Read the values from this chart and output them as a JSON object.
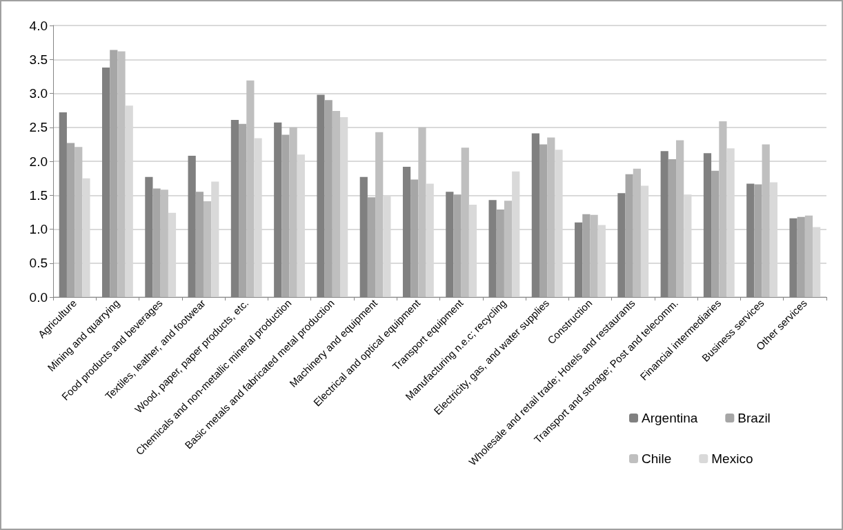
{
  "chart_data": {
    "type": "bar",
    "categories": [
      "Agriculture",
      "Mining and quarrying",
      "Food products and beverages",
      "Textiles, leather, and footwear",
      "Wood, paper, paper products, etc.",
      "Chemicals and non-metallic mineral production",
      "Basic metals and fabricated metal production",
      "Machinery and equipment",
      "Electrical and optical equipment",
      "Transport equipment",
      "Manufacturing n.e.c; recycling",
      "Electricity, gas, and water supplies",
      "Construction",
      "Wholesale and retail trade; Hotels and restaurants",
      "Transport and storage; Post and telecomm.",
      "Financial intermediaries",
      "Business services",
      "Other services"
    ],
    "series": [
      {
        "name": "Argentina",
        "color": "#808080",
        "values": [
          2.72,
          3.38,
          1.77,
          2.08,
          2.61,
          2.57,
          2.98,
          1.77,
          1.92,
          1.55,
          1.43,
          2.41,
          1.1,
          1.53,
          2.15,
          2.12,
          1.67,
          1.16
        ]
      },
      {
        "name": "Brazil",
        "color": "#a6a6a6",
        "values": [
          2.27,
          3.64,
          1.6,
          1.55,
          2.55,
          2.39,
          2.9,
          1.47,
          1.73,
          1.51,
          1.29,
          2.25,
          1.22,
          1.81,
          2.03,
          1.86,
          1.66,
          1.18
        ]
      },
      {
        "name": "Chile",
        "color": "#bfbfbf",
        "values": [
          2.21,
          3.62,
          1.58,
          1.41,
          3.19,
          2.5,
          2.74,
          2.43,
          2.5,
          2.2,
          1.42,
          2.35,
          1.21,
          1.89,
          2.31,
          2.59,
          2.25,
          1.2
        ]
      },
      {
        "name": "Mexico",
        "color": "#d9d9d9",
        "values": [
          1.75,
          2.82,
          1.24,
          1.7,
          2.34,
          2.1,
          2.65,
          1.49,
          1.67,
          1.36,
          1.85,
          2.17,
          1.06,
          1.64,
          1.51,
          2.19,
          1.69,
          1.03
        ]
      }
    ],
    "ylim": [
      0,
      4.0
    ],
    "yticks": [
      {
        "value": 0,
        "label": "0.0"
      },
      {
        "value": 0.5,
        "label": "0.5"
      },
      {
        "value": 1,
        "label": "1.0"
      },
      {
        "value": 1.5,
        "label": "1.5"
      },
      {
        "value": 2,
        "label": "2.0"
      },
      {
        "value": 2.5,
        "label": "2.5"
      },
      {
        "value": 3,
        "label": "3.0"
      },
      {
        "value": 3.5,
        "label": "3.5"
      },
      {
        "value": 4,
        "label": "4.0"
      }
    ],
    "grid": "y",
    "legend": "bottom right"
  }
}
